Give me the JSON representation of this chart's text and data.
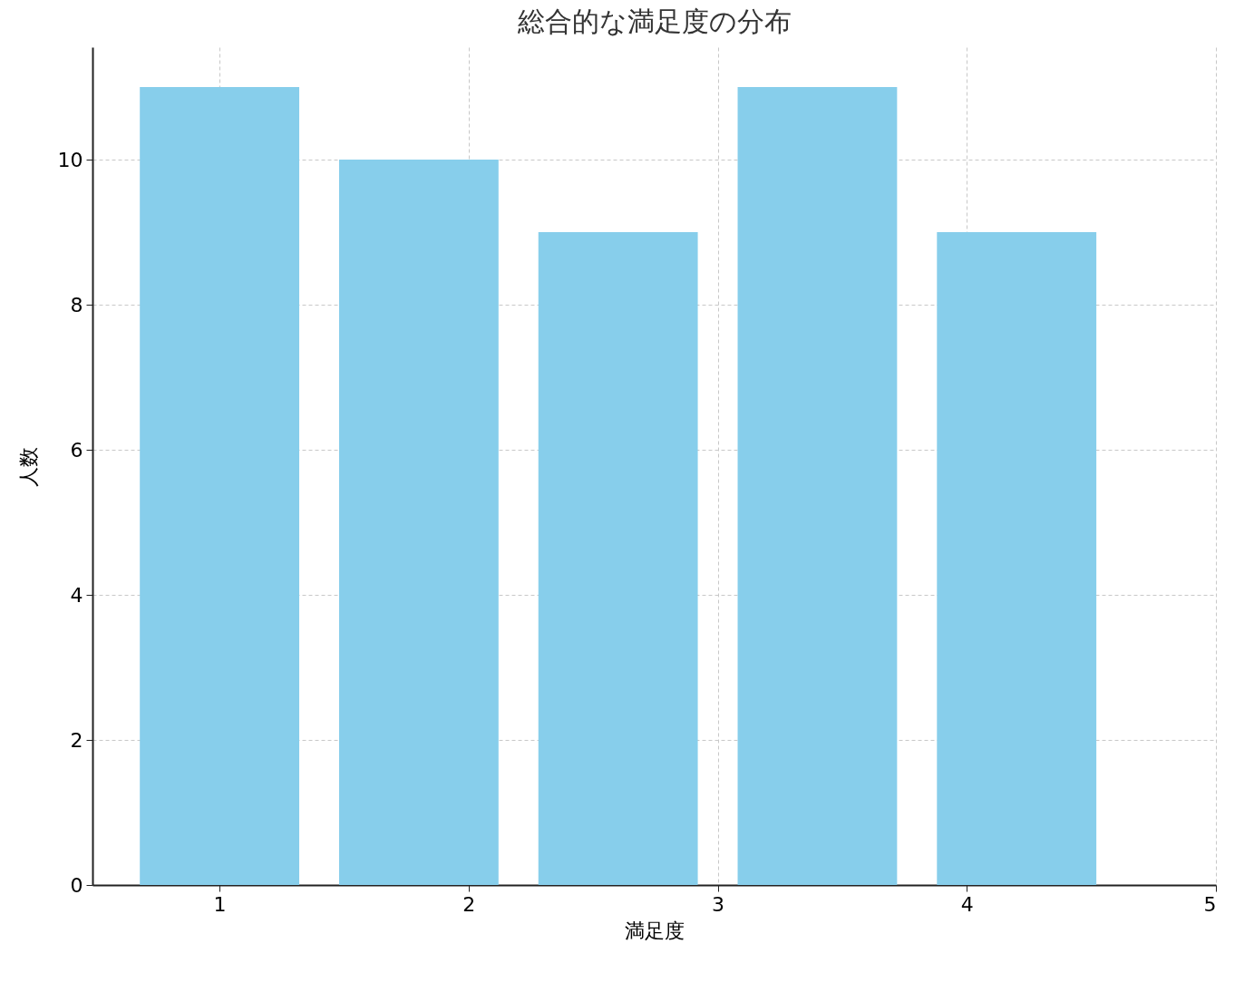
{
  "chart_data": {
    "type": "bar",
    "title": "総合的な満足度の分布",
    "xlabel": "満足度",
    "ylabel": "人数",
    "x": [
      1,
      1.8,
      2.6,
      3.4,
      4.2
    ],
    "values": [
      11,
      10,
      9,
      11,
      9
    ],
    "color": "#87ceeb",
    "xlim": [
      0.49,
      5.0
    ],
    "xticks": [
      1,
      2,
      3,
      4,
      5
    ],
    "ylim": [
      0,
      11.55
    ],
    "yticks": [
      0,
      2,
      4,
      6,
      8,
      10
    ],
    "grid": true
  }
}
